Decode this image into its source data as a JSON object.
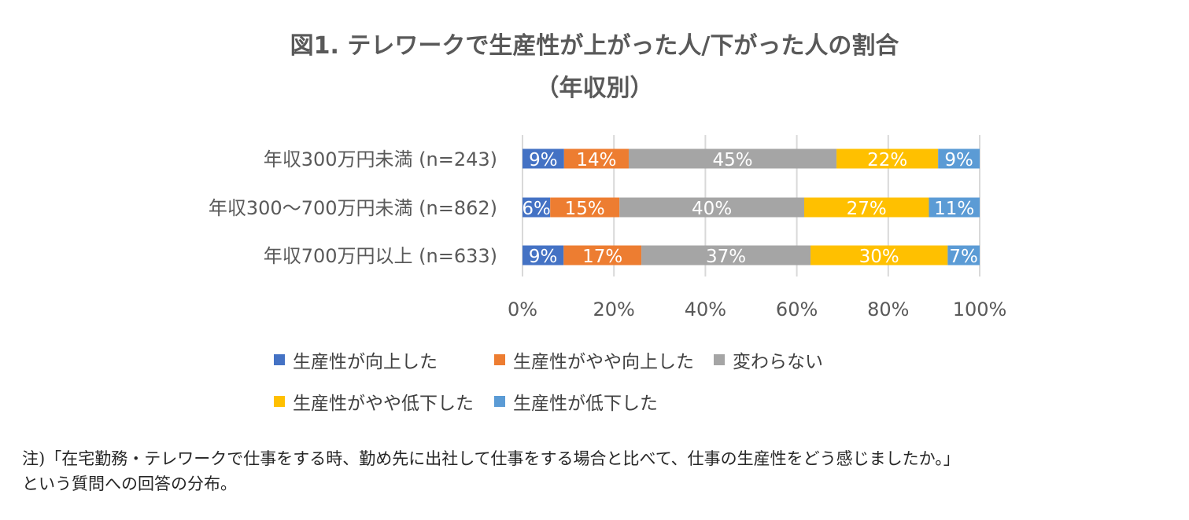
{
  "title_line1": "図1. テレワークで生産性が上がった人/下がった人の割合",
  "title_line2": "（年収別）",
  "colors": {
    "up": "#4472C4",
    "slightly_up": "#ED7D31",
    "same": "#A5A5A5",
    "slightly_down": "#FFC000",
    "down": "#5B9BD5",
    "grid": "#D9D9D9",
    "axis_text": "#595959"
  },
  "chart_data": {
    "type": "bar",
    "orientation": "horizontal",
    "stacked": "percent",
    "categories": [
      "年収300万円未満 (n=243)",
      "年収300～700万円未満 (n=862)",
      "年収700万円以上 (n=633)"
    ],
    "series": [
      {
        "name": "生産性が向上した",
        "values": [
          9,
          6,
          9
        ],
        "labels": [
          "9%",
          "6%",
          "9%"
        ]
      },
      {
        "name": "生産性がやや向上した",
        "values": [
          14,
          15,
          17
        ],
        "labels": [
          "14%",
          "15%",
          "17%"
        ]
      },
      {
        "name": "変わらない",
        "values": [
          45,
          40,
          37
        ],
        "labels": [
          "45%",
          "40%",
          "37%"
        ]
      },
      {
        "name": "生産性がやや低下した",
        "values": [
          22,
          27,
          30
        ],
        "labels": [
          "22%",
          "27%",
          "30%"
        ]
      },
      {
        "name": "生産性が低下した",
        "values": [
          9,
          11,
          7
        ],
        "labels": [
          "9%",
          "11%",
          "7%"
        ]
      }
    ],
    "xlim": [
      0,
      100
    ],
    "xticks": [
      "0%",
      "20%",
      "40%",
      "60%",
      "80%",
      "100%"
    ],
    "grid": true,
    "legend_position": "bottom"
  },
  "note_line1": "注)「在宅勤務・テレワークで仕事をする時、勤め先に出社して仕事をする場合と比べて、仕事の生産性をどう感じましたか。」",
  "note_line2": "という質問への回答の分布。"
}
